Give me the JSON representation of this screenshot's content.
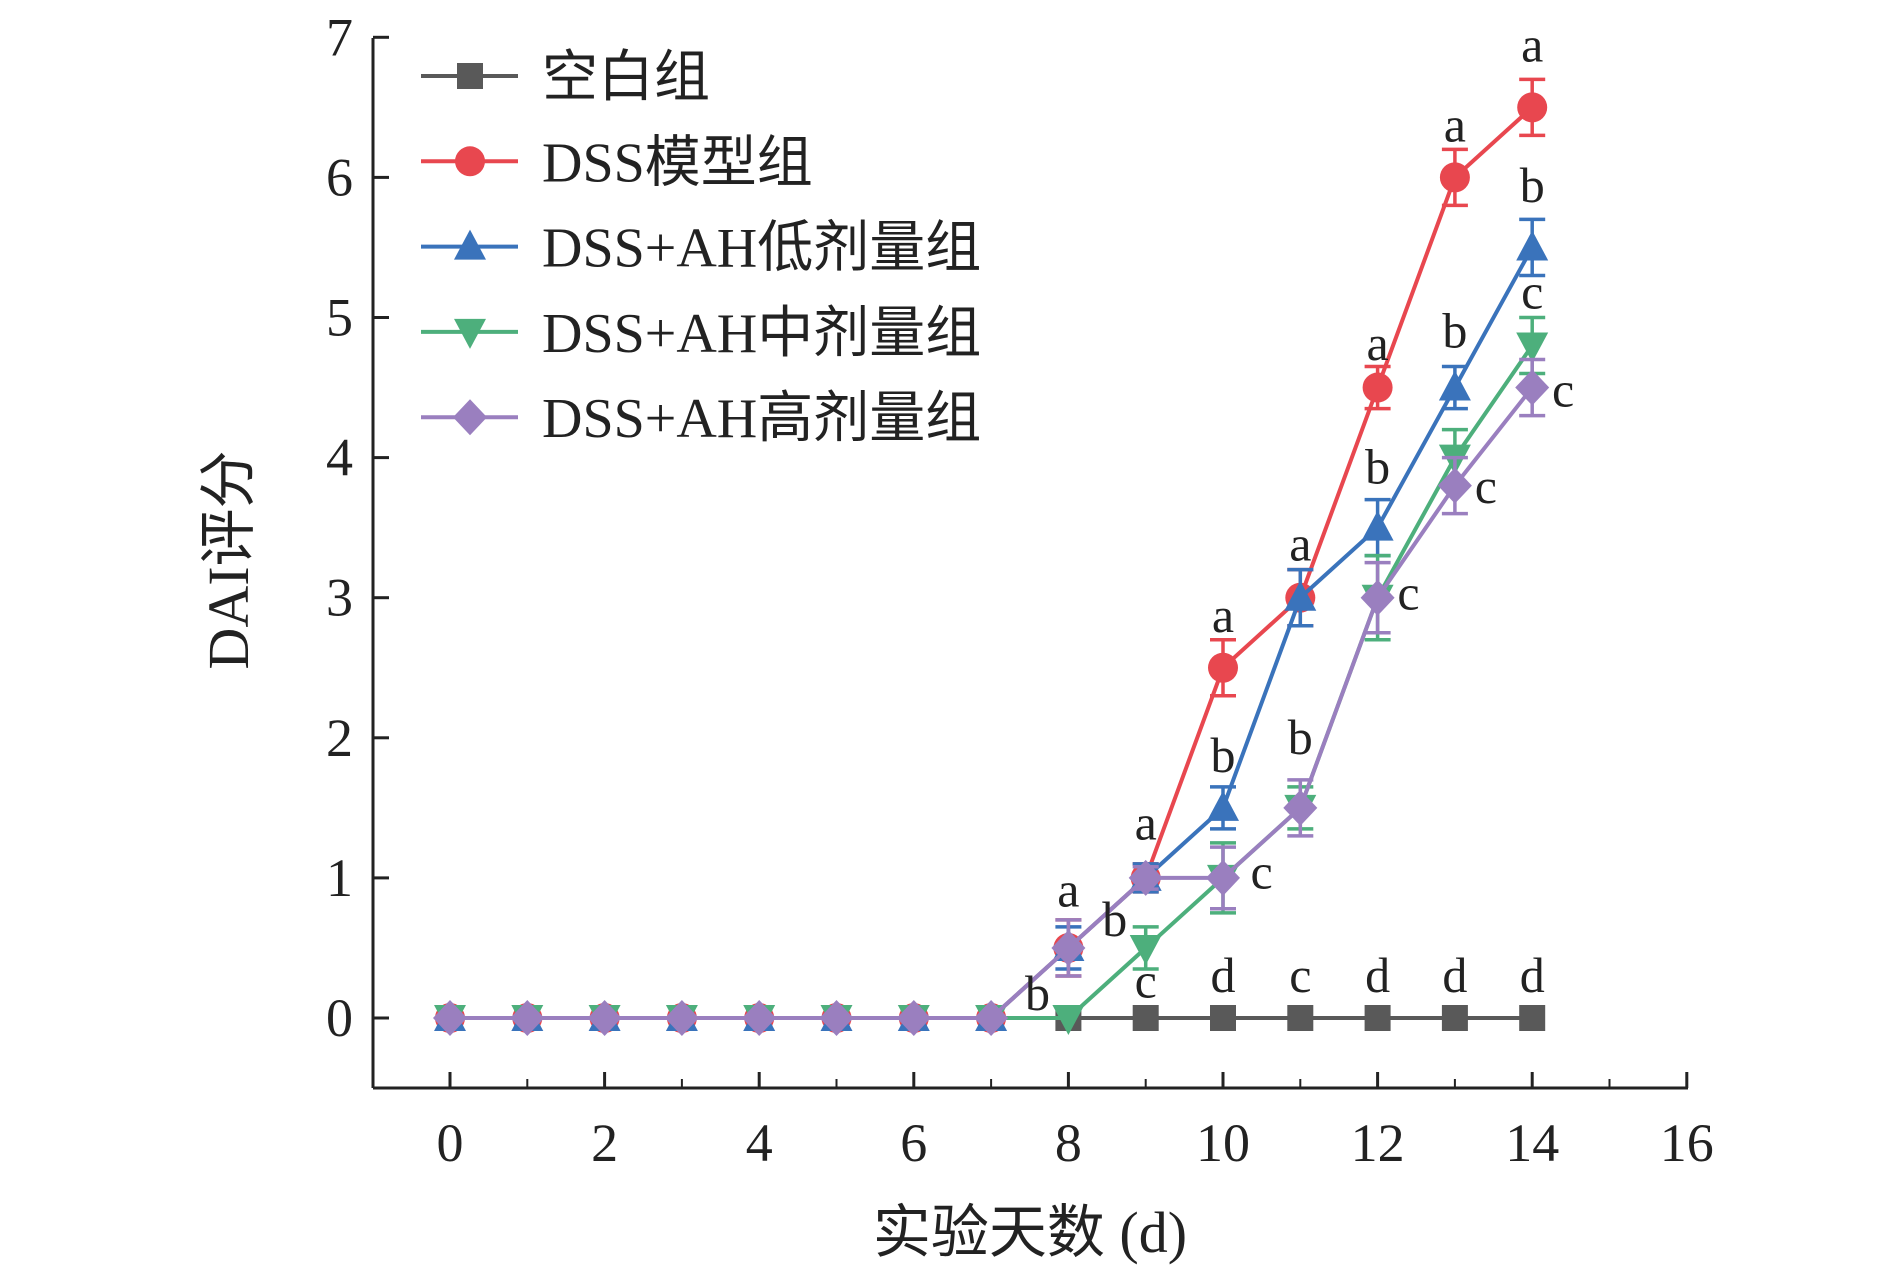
{
  "chart_data": {
    "type": "line",
    "title": "",
    "xlabel": "实验天数 (d)",
    "ylabel": "DAI评分",
    "xlim": [
      -1,
      16
    ],
    "ylim": [
      -0.5,
      7
    ],
    "xticks": [
      0,
      2,
      4,
      6,
      8,
      10,
      12,
      14,
      16
    ],
    "yticks": [
      0,
      1,
      2,
      3,
      4,
      5,
      6,
      7
    ],
    "grid": false,
    "legend_position": "top-left",
    "x": [
      0,
      1,
      2,
      3,
      4,
      5,
      6,
      7,
      8,
      9,
      10,
      11,
      12,
      13,
      14
    ],
    "series": [
      {
        "name": "空白组",
        "color": "#595959",
        "marker": "square",
        "values": [
          0,
          0,
          0,
          0,
          0,
          0,
          0,
          0,
          0,
          0,
          0,
          0,
          0,
          0,
          0
        ],
        "errors": [
          0,
          0,
          0,
          0,
          0,
          0,
          0,
          0,
          0,
          0,
          0,
          0,
          0,
          0,
          0
        ]
      },
      {
        "name": "DSS模型组",
        "color": "#e8474f",
        "marker": "circle",
        "values": [
          0,
          0,
          0,
          0,
          0,
          0,
          0,
          0,
          0.5,
          1,
          2.5,
          3,
          4.5,
          6,
          6.5
        ],
        "errors": [
          0,
          0,
          0,
          0,
          0,
          0,
          0,
          0,
          0.2,
          0.1,
          0.2,
          0.2,
          0.15,
          0.2,
          0.2
        ]
      },
      {
        "name": "DSS+AH低剂量组",
        "color": "#3a73bb",
        "marker": "triangle-up",
        "values": [
          0,
          0,
          0,
          0,
          0,
          0,
          0,
          0,
          0.5,
          1,
          1.5,
          3,
          3.5,
          4.5,
          5.5
        ],
        "errors": [
          0,
          0,
          0,
          0,
          0,
          0,
          0,
          0,
          0.15,
          0.1,
          0.15,
          0.2,
          0.2,
          0.15,
          0.2
        ]
      },
      {
        "name": "DSS+AH中剂量组",
        "color": "#4daf7c",
        "marker": "triangle-down",
        "values": [
          0,
          0,
          0,
          0,
          0,
          0,
          0,
          0,
          0,
          0.5,
          1,
          1.5,
          3,
          4,
          4.8
        ],
        "errors": [
          0,
          0,
          0,
          0,
          0,
          0,
          0,
          0,
          0,
          0.15,
          0.25,
          0.15,
          0.3,
          0.2,
          0.2
        ]
      },
      {
        "name": "DSS+AH高剂量组",
        "color": "#9a7fbf",
        "marker": "diamond",
        "values": [
          0,
          0,
          0,
          0,
          0,
          0,
          0,
          0,
          0.5,
          1,
          1,
          1.5,
          3,
          3.8,
          4.5
        ],
        "errors": [
          0,
          0,
          0,
          0,
          0,
          0,
          0,
          0,
          0.2,
          0.08,
          0.22,
          0.2,
          0.25,
          0.2,
          0.2
        ]
      }
    ],
    "annotations": [
      {
        "day": 8,
        "y": 0.91,
        "text": "a"
      },
      {
        "day": 7.6,
        "y": 0.17,
        "text": "b"
      },
      {
        "day": 8.6,
        "y": 0.7,
        "text": "b"
      },
      {
        "day": 9,
        "y": 1.39,
        "text": "a"
      },
      {
        "day": 9,
        "y": 0.26,
        "text": "c"
      },
      {
        "day": 10,
        "y": 2.87,
        "text": "a"
      },
      {
        "day": 10,
        "y": 1.87,
        "text": "b"
      },
      {
        "day": 10.5,
        "y": 1.04,
        "text": "c"
      },
      {
        "day": 10,
        "y": 0.3,
        "text": "d"
      },
      {
        "day": 11,
        "y": 3.38,
        "text": "a"
      },
      {
        "day": 11,
        "y": 2.0,
        "text": "b"
      },
      {
        "day": 11,
        "y": 0.3,
        "text": "c"
      },
      {
        "day": 12,
        "y": 4.81,
        "text": "a"
      },
      {
        "day": 12,
        "y": 3.93,
        "text": "b"
      },
      {
        "day": 12.4,
        "y": 3.03,
        "text": "c"
      },
      {
        "day": 12,
        "y": 0.3,
        "text": "d"
      },
      {
        "day": 13,
        "y": 6.37,
        "text": "a"
      },
      {
        "day": 13,
        "y": 4.9,
        "text": "b"
      },
      {
        "day": 13.4,
        "y": 3.79,
        "text": "c"
      },
      {
        "day": 13,
        "y": 0.3,
        "text": "d"
      },
      {
        "day": 14,
        "y": 6.94,
        "text": "a"
      },
      {
        "day": 14,
        "y": 5.94,
        "text": "b"
      },
      {
        "day": 14,
        "y": 5.18,
        "text": "c"
      },
      {
        "day": 14.4,
        "y": 4.48,
        "text": "c"
      },
      {
        "day": 14,
        "y": 0.3,
        "text": "d"
      }
    ]
  }
}
